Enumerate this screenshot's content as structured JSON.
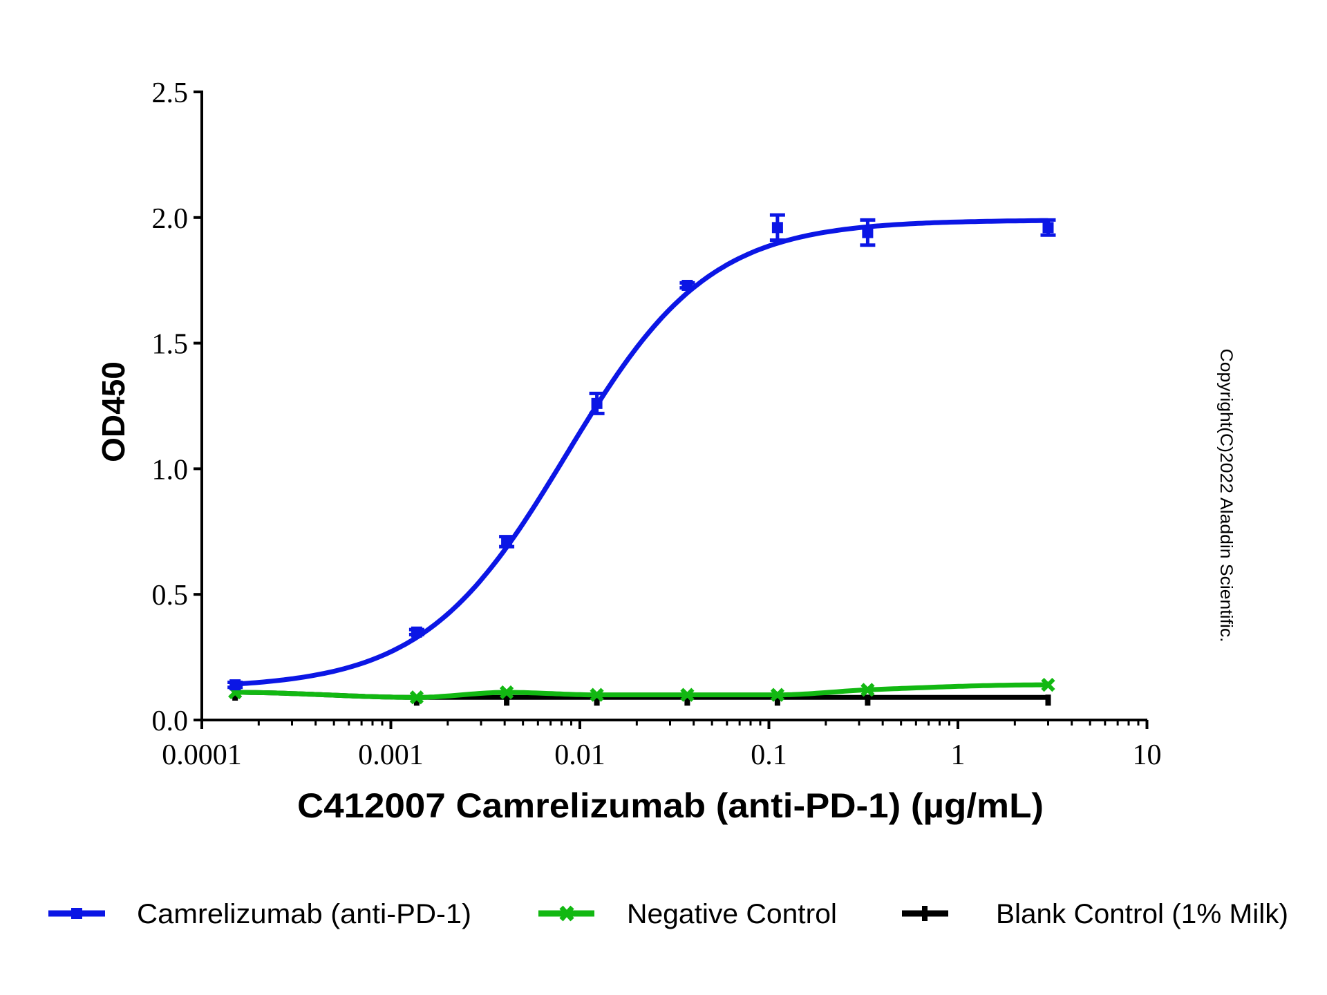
{
  "chart_data": {
    "type": "line",
    "title": "",
    "xlabel": "C412007 Camrelizumab (anti-PD-1) (µg/mL)",
    "ylabel": "OD450",
    "xscale": "log",
    "xlim": [
      0.0001,
      10
    ],
    "ylim": [
      0.0,
      2.5
    ],
    "x_ticks": [
      0.0001,
      0.001,
      0.01,
      0.1,
      1,
      10
    ],
    "x_tick_labels": [
      "0.0001",
      "0.001",
      "0.01",
      "0.1",
      "1",
      "10"
    ],
    "y_ticks": [
      0.0,
      0.5,
      1.0,
      1.5,
      2.0,
      2.5
    ],
    "y_tick_labels": [
      "0.0",
      "0.5",
      "1.0",
      "1.5",
      "2.0",
      "2.5"
    ],
    "grid": false,
    "legend_position": "bottom",
    "series": [
      {
        "name": "Camrelizumab (anti-PD-1)",
        "color": "#0B16E5",
        "marker": "square",
        "x": [
          0.00015,
          0.00137,
          0.0041,
          0.0123,
          0.037,
          0.111,
          0.333,
          3.0
        ],
        "y": [
          0.14,
          0.35,
          0.71,
          1.26,
          1.73,
          1.96,
          1.94,
          1.96
        ],
        "error": [
          0.01,
          0.01,
          0.02,
          0.04,
          0.01,
          0.05,
          0.05,
          0.03
        ]
      },
      {
        "name": "Negative Control",
        "color": "#12B812",
        "marker": "x",
        "x": [
          0.00015,
          0.00137,
          0.0041,
          0.0123,
          0.037,
          0.111,
          0.333,
          3.0
        ],
        "y": [
          0.11,
          0.09,
          0.11,
          0.1,
          0.1,
          0.1,
          0.12,
          0.14
        ],
        "error": [
          0.005,
          0.005,
          0.005,
          0.005,
          0.005,
          0.005,
          0.005,
          0.005
        ]
      },
      {
        "name": "Blank Control (1% Milk)",
        "color": "#000000",
        "marker": "plus",
        "x": [
          0.00015,
          0.00137,
          0.0041,
          0.0123,
          0.037,
          0.111,
          0.333,
          3.0
        ],
        "y": [
          0.11,
          0.09,
          0.09,
          0.09,
          0.09,
          0.09,
          0.09,
          0.09
        ],
        "error": [
          0.005,
          0.005,
          0.005,
          0.005,
          0.005,
          0.005,
          0.005,
          0.005
        ]
      }
    ],
    "annotations": [
      "Copyright(C)2022 Aladdin Scientific."
    ]
  }
}
